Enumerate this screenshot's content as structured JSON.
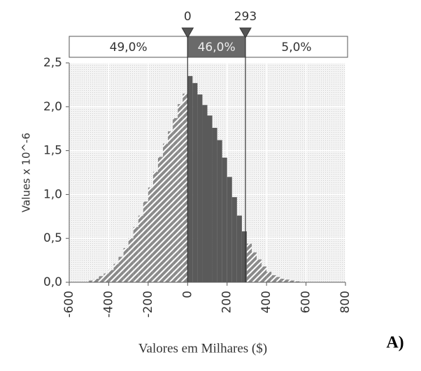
{
  "chart_data": {
    "type": "histogram",
    "y_label": "Values x 10^-6",
    "x_label": "Valores em Milhares ($)",
    "panel_label": "A)",
    "bins": [
      -500,
      -475,
      -450,
      -425,
      -400,
      -375,
      -350,
      -325,
      -300,
      -275,
      -250,
      -225,
      -200,
      -175,
      -150,
      -125,
      -100,
      -75,
      -50,
      -25,
      0,
      25,
      50,
      75,
      100,
      125,
      150,
      175,
      200,
      225,
      250,
      275,
      300,
      325,
      350,
      375,
      400,
      425,
      450,
      475,
      500,
      525,
      550,
      575
    ],
    "values": [
      0.02,
      0.04,
      0.07,
      0.1,
      0.14,
      0.21,
      0.29,
      0.39,
      0.5,
      0.63,
      0.76,
      0.92,
      1.08,
      1.26,
      1.43,
      1.58,
      1.72,
      1.87,
      2.03,
      2.15,
      2.35,
      2.27,
      2.14,
      2.02,
      1.9,
      1.76,
      1.62,
      1.42,
      1.2,
      0.97,
      0.76,
      0.58,
      0.44,
      0.34,
      0.26,
      0.18,
      0.12,
      0.08,
      0.06,
      0.04,
      0.03,
      0.02,
      0.01
    ],
    "delimiters": [
      0,
      293
    ],
    "region_percentages": [
      49.0,
      46.0,
      5.0
    ],
    "region_value_labels": [
      "49,0%",
      "46,0%",
      "5,0%"
    ],
    "xlim": [
      -600,
      800
    ],
    "xticks": [
      -600,
      -400,
      -200,
      0,
      200,
      400,
      600,
      800
    ],
    "ylim": [
      0,
      2.5
    ],
    "yticks": [
      {
        "value": 0,
        "label": "0,0"
      },
      {
        "value": 0.5,
        "label": "0,5"
      },
      {
        "value": 1,
        "label": "1,0"
      },
      {
        "value": 1.5,
        "label": "1,5"
      },
      {
        "value": 2,
        "label": "2,0"
      },
      {
        "value": 2.5,
        "label": "2,5"
      }
    ],
    "grid": true,
    "color": "#8a8a8a",
    "highlight_color": "#5a5a5a"
  }
}
